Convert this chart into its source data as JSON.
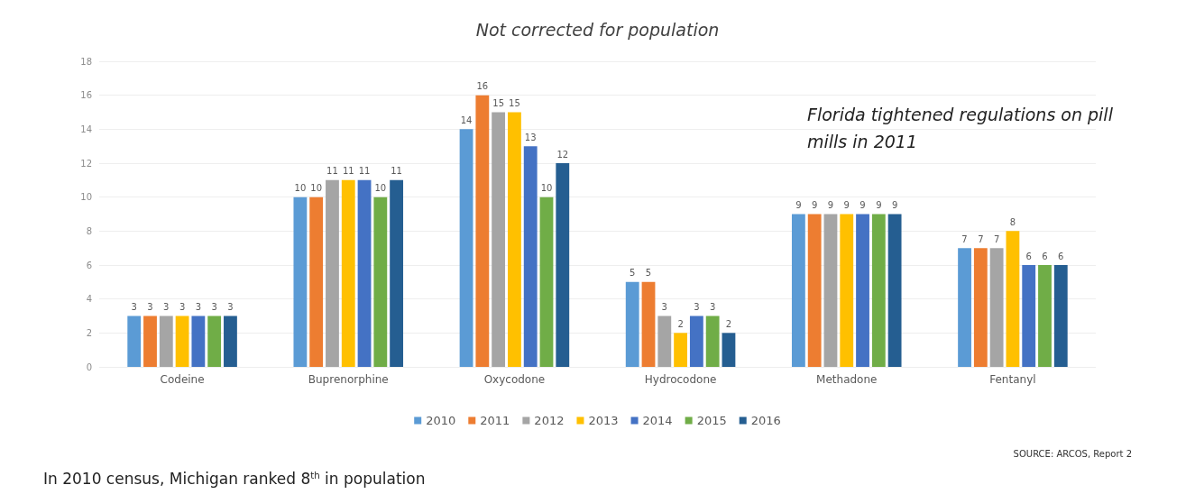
{
  "chart_data": {
    "type": "bar",
    "title": "Not corrected for population",
    "categories": [
      "Codeine",
      "Buprenorphine",
      "Oxycodone",
      "Hydrocodone",
      "Methadone",
      "Fentanyl"
    ],
    "series": [
      {
        "name": "2010",
        "color": "#5b9bd5",
        "values": [
          3,
          10,
          14,
          5,
          9,
          7
        ]
      },
      {
        "name": "2011",
        "color": "#ed7d31",
        "values": [
          3,
          10,
          16,
          5,
          9,
          7
        ]
      },
      {
        "name": "2012",
        "color": "#a5a5a5",
        "values": [
          3,
          11,
          15,
          3,
          9,
          7
        ]
      },
      {
        "name": "2013",
        "color": "#ffc000",
        "values": [
          3,
          11,
          15,
          2,
          9,
          8
        ]
      },
      {
        "name": "2014",
        "color": "#4472c4",
        "values": [
          3,
          11,
          13,
          3,
          9,
          6
        ]
      },
      {
        "name": "2015",
        "color": "#70ad47",
        "values": [
          3,
          10,
          10,
          3,
          9,
          6
        ]
      },
      {
        "name": "2016",
        "color": "#255e91",
        "values": [
          3,
          11,
          12,
          2,
          9,
          6
        ]
      }
    ],
    "ylim": [
      0,
      18
    ],
    "yticks": [
      0,
      2,
      4,
      6,
      8,
      10,
      12,
      14,
      16,
      18
    ],
    "data_labels": true,
    "grid": "y",
    "legend": "bottom",
    "annotations": [
      "Florida tightened regulations on pill mills in 2011",
      "SOURCE: ARCOS, Report 2",
      "In 2010 census, Michigan ranked 8$^{th}$ in population"
    ]
  }
}
